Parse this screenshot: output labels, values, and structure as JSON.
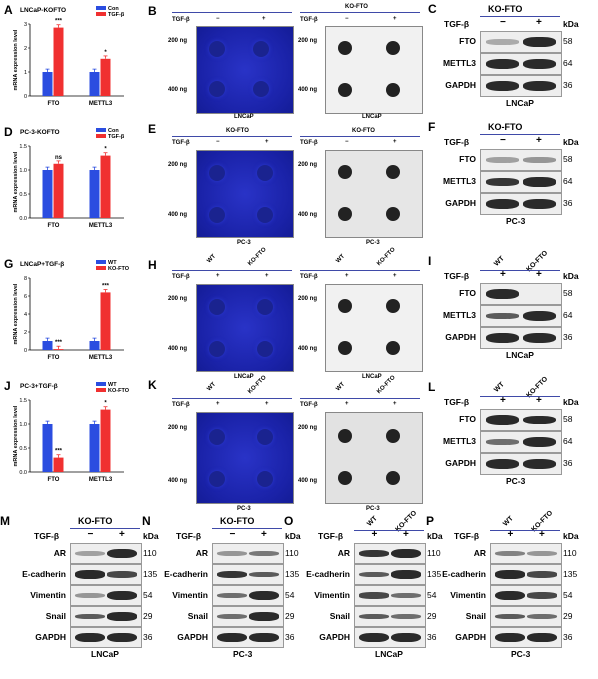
{
  "panels": {
    "A": {
      "letter": "A",
      "title": "LNCaP-KOFTO",
      "ylabel": "mRNA expression level",
      "legend": [
        "Con",
        "TGF-β"
      ],
      "stars": [
        "***",
        "*"
      ]
    },
    "D": {
      "letter": "D",
      "title": "PC-3-KOFTO",
      "ylabel": "mRNA expression level",
      "legend": [
        "Con",
        "TGF-β"
      ],
      "stars": [
        "ns",
        "*"
      ]
    },
    "G": {
      "letter": "G",
      "title": "LNCaP+TGF-β",
      "ylabel": "mRNA expression level",
      "legend": [
        "WT",
        "KO-FTO"
      ],
      "stars": [
        "***",
        "***"
      ]
    },
    "J": {
      "letter": "J",
      "title": "PC-3+TGF-β",
      "ylabel": "mRNA expression level",
      "legend": [
        "WT",
        "KO-FTO"
      ],
      "stars": [
        "***",
        "*"
      ]
    },
    "B": {
      "letter": "B",
      "header": "KO-FTO",
      "caption": "LNCaP"
    },
    "E": {
      "letter": "E",
      "header": "KO-FTO",
      "caption": "PC-3"
    },
    "H": {
      "letter": "H",
      "caption": "LNCaP"
    },
    "K": {
      "letter": "K",
      "caption": "PC-3"
    },
    "C": {
      "letter": "C",
      "header": "KO-FTO",
      "caption": "LNCaP"
    },
    "F": {
      "letter": "F",
      "header": "KO-FTO",
      "caption": "PC-3"
    },
    "I": {
      "letter": "I",
      "caption": "LNCaP"
    },
    "L": {
      "letter": "L",
      "caption": "PC-3"
    },
    "M": {
      "letter": "M",
      "header": "KO-FTO",
      "caption": "LNCaP"
    },
    "N": {
      "letter": "N",
      "header": "KO-FTO",
      "caption": "PC-3"
    },
    "O": {
      "letter": "O",
      "caption": "LNCaP"
    },
    "P": {
      "letter": "P",
      "caption": "PC-3"
    }
  },
  "labels": {
    "tgf": "TGF-β",
    "minus": "−",
    "plus": "+",
    "wt": "WT",
    "kofto": "KO-FTO",
    "kda": "kDa",
    "ng200": "200 ng",
    "ng400": "400 ng",
    "fto": "FTO",
    "mettl3": "METTL3",
    "gapdh": "GAPDH",
    "ar": "AR",
    "ecad": "E-cadherin",
    "vim": "Vimentin",
    "snail": "Snail",
    "kd58": "58",
    "kd64": "64",
    "kd36": "36",
    "kd110": "110",
    "kd135": "135",
    "kd54": "54",
    "kd29": "29"
  },
  "chart_data": [
    {
      "type": "bar",
      "title": "LNCaP-KOFTO",
      "ylabel": "mRNA expression level",
      "categories": [
        "FTO",
        "METTL3"
      ],
      "ylim": [
        0,
        3
      ],
      "yticks": [
        0,
        1,
        2,
        3
      ],
      "series": [
        {
          "name": "Con",
          "values": [
            1.0,
            1.0
          ]
        },
        {
          "name": "TGF-β",
          "values": [
            2.85,
            1.55
          ]
        }
      ]
    },
    {
      "type": "bar",
      "title": "PC-3-KOFTO",
      "ylabel": "mRNA expression level",
      "categories": [
        "FTO",
        "METTL3"
      ],
      "ylim": [
        0,
        1.5
      ],
      "yticks": [
        0.0,
        0.5,
        1.0,
        1.5
      ],
      "series": [
        {
          "name": "Con",
          "values": [
            1.0,
            1.0
          ]
        },
        {
          "name": "TGF-β",
          "values": [
            1.13,
            1.3
          ]
        }
      ]
    },
    {
      "type": "bar",
      "title": "LNCaP+TGF-β",
      "ylabel": "mRNA expression level",
      "categories": [
        "FTO",
        "METTL3"
      ],
      "ylim": [
        0,
        8
      ],
      "yticks": [
        0,
        2,
        4,
        6,
        8
      ],
      "series": [
        {
          "name": "WT",
          "values": [
            1.0,
            1.0
          ]
        },
        {
          "name": "KO-FTO",
          "values": [
            0.1,
            6.4
          ]
        }
      ]
    },
    {
      "type": "bar",
      "title": "PC-3+TGF-β",
      "ylabel": "mRNA expression level",
      "categories": [
        "FTO",
        "METTL3"
      ],
      "ylim": [
        0,
        1.5
      ],
      "yticks": [
        0.0,
        0.5,
        1.0,
        1.5
      ],
      "series": [
        {
          "name": "WT",
          "values": [
            1.0,
            1.0
          ]
        },
        {
          "name": "KO-FTO",
          "values": [
            0.3,
            1.3
          ]
        }
      ]
    }
  ],
  "colors": {
    "blue": "#2b4de0",
    "red": "#f03030",
    "dotBlueBg": "#1e28b0",
    "lineBlue": "#3f4aa8"
  }
}
